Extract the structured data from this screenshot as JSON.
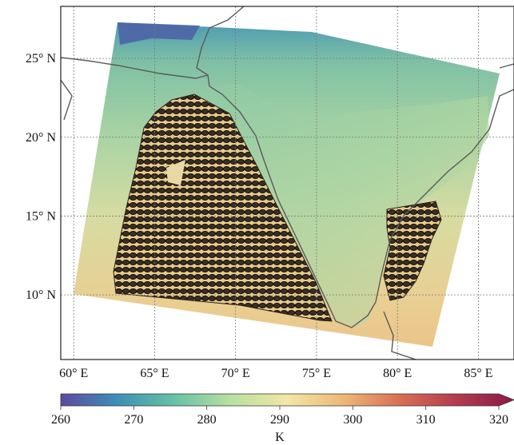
{
  "map": {
    "lat_ticks": [
      {
        "label": "25° N",
        "value": 25
      },
      {
        "label": "20° N",
        "value": 20
      },
      {
        "label": "15° N",
        "value": 15
      },
      {
        "label": "10° N",
        "value": 10
      }
    ],
    "lon_ticks": [
      {
        "label": "60° E",
        "value": 60
      },
      {
        "label": "65° E",
        "value": 65
      },
      {
        "label": "70° E",
        "value": 70
      },
      {
        "label": "75° E",
        "value": 75
      },
      {
        "label": "80° E",
        "value": 80
      },
      {
        "label": "85° E",
        "value": 85
      }
    ],
    "lon_range": [
      59.2,
      87.2
    ],
    "lat_range": [
      5.9,
      28.3
    ],
    "grid": true,
    "overlay": "elliptical footprint markers over the Arabian Sea and Bay of Bengal coast"
  },
  "colorbar": {
    "ticks": [
      "260",
      "270",
      "280",
      "290",
      "300",
      "310",
      "320"
    ],
    "min": 260,
    "max": 320,
    "unit_label": "K",
    "colors": [
      "#5c4a9e",
      "#3f8fb7",
      "#68c1a4",
      "#b8e0a2",
      "#f3e6a4",
      "#ecb777",
      "#d86e53",
      "#b23b4f",
      "#8a1a47"
    ]
  }
}
